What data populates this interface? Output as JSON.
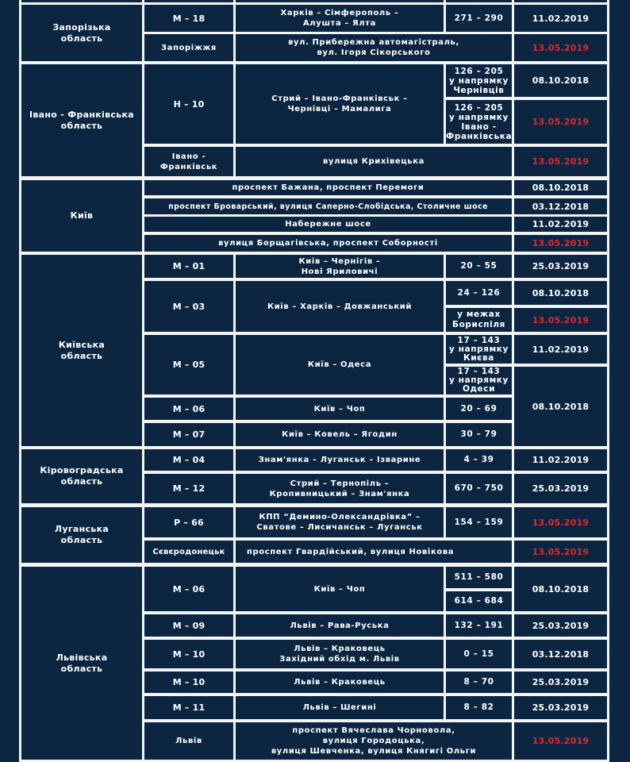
{
  "colors": {
    "background": "#0c2642",
    "grid": "#f2f4f6",
    "text": "#ffffff",
    "highlight_date": "#e3262b"
  },
  "zaporizka": {
    "region": "Запорізька\nобласть",
    "r1": {
      "road": "М – 18",
      "route": "Харків – Сімферополь –\nАлушта – Ялта",
      "km": "271 – 290",
      "date": "11.02.2019"
    },
    "r2": {
      "road": "Запоріжжя",
      "route": "вул. Прибережна автомагістраль,\nвул. Ігоря Сікорського",
      "date": "13.05.2019"
    }
  },
  "ivano": {
    "region": "Івано - Франківська\nобласть",
    "r1": {
      "road": "Н – 10",
      "route": "Стрий – Івано-Франківськ –\nЧернівці – Мамалига",
      "km1": "126 – 205\nу напрямку\nЧернівців",
      "date1": "08.10.2018",
      "km2": "126 – 205\nу напрямку\nІвано -\nФранківська",
      "date2": "13.05.2019"
    },
    "r2": {
      "road": "Івано -\nФранківськ",
      "route": "вулиця Крихівецька",
      "date": "13.05.2019"
    }
  },
  "kyiv": {
    "region": "Київ",
    "rows": [
      {
        "route": "проспект Бажана, проспект Перемоги",
        "date": "08.10.2018"
      },
      {
        "route": "проспект Броварський, вулиця Саперно-Слобідська, Столичне шосе",
        "date": "03.12.2018"
      },
      {
        "route": "Набережне шосе",
        "date": "11.02.2019"
      },
      {
        "route": "вулиця Борщагівська, проспект Соборності",
        "date": "13.05.2019"
      }
    ]
  },
  "kyivska": {
    "region": "Київська\nобласть",
    "m01": {
      "road": "М – 01",
      "route": "Київ – Чернігів –\nНові Яриловичі",
      "km": "20 – 55",
      "date": "25.03.2019"
    },
    "m03": {
      "road": "М – 03",
      "route": "Київ – Харків – Довжанський",
      "km1": "24 – 126",
      "date1": "08.10.2018",
      "km2": "у межах\nБориспіля",
      "date2": "13.05.2019"
    },
    "m05": {
      "road": "М – 05",
      "route": "Київ – Одеса",
      "km1": "17 – 143\nу напрямку\nКиєва",
      "date1": "11.02.2019",
      "km2": "17 – 143\nу напрямку\nОдеси"
    },
    "m06": {
      "road": "М – 06",
      "route": "Київ – Чоп",
      "km": "20 – 69"
    },
    "m07": {
      "road": "М – 07",
      "route": "Київ – Ковель – Ягодин",
      "km": "30 – 79"
    },
    "shared_date": "08.10.2018"
  },
  "kirovohradska": {
    "region": "Кіровоградська\nобласть",
    "m04": {
      "road": "М – 04",
      "route": "Знам'янка – Луганськ – Ізварине",
      "km": "4 – 39",
      "date": "11.02.2019"
    },
    "m12": {
      "road": "М – 12",
      "route": "Стрий – Тернопіль –\nКропивницький – Знам'янка",
      "km": "670 – 750",
      "date": "25.03.2019"
    }
  },
  "luhanska": {
    "region": "Луганська\nобласть",
    "r66": {
      "road": "Р – 66",
      "route": "КПП “Демино-Олександрівка” –\nСватове – Лисичанськ – Луганськ",
      "km": "154 – 159",
      "date": "13.05.2019"
    },
    "city": {
      "road": "Сєвєродонецьк",
      "route": "проспект Гвардійський, вулиця Новікова",
      "date": "13.05.2019"
    }
  },
  "lvivska": {
    "region": "Львівська\nобласть",
    "m06": {
      "road": "М – 06",
      "route": "Київ – Чоп",
      "km1": "511 – 580",
      "km2": "614 – 684",
      "date": "08.10.2018"
    },
    "m09": {
      "road": "М – 09",
      "route": "Львів – Рава-Руська",
      "km": "132 – 191",
      "date": "25.03.2019"
    },
    "m10a": {
      "road": "М – 10",
      "route": "Львів – Краковець\nЗахідний обхід м. Львів",
      "km": "0 – 15",
      "date": "03.12.2018"
    },
    "m10b": {
      "road": "М – 10",
      "route": "Львів – Краковець",
      "km": "8 – 70",
      "date": "25.03.2019"
    },
    "m11": {
      "road": "М – 11",
      "route": "Львів – Шегині",
      "km": "8 – 82",
      "date": "25.03.2019"
    },
    "city": {
      "road": "Львів",
      "route": "проспект Вячеслава Чорновола,\nвулиця Городоцька,\nвулиця Шевченка, вулиця Княгигі Ольги",
      "date": "13.05.2019"
    }
  }
}
